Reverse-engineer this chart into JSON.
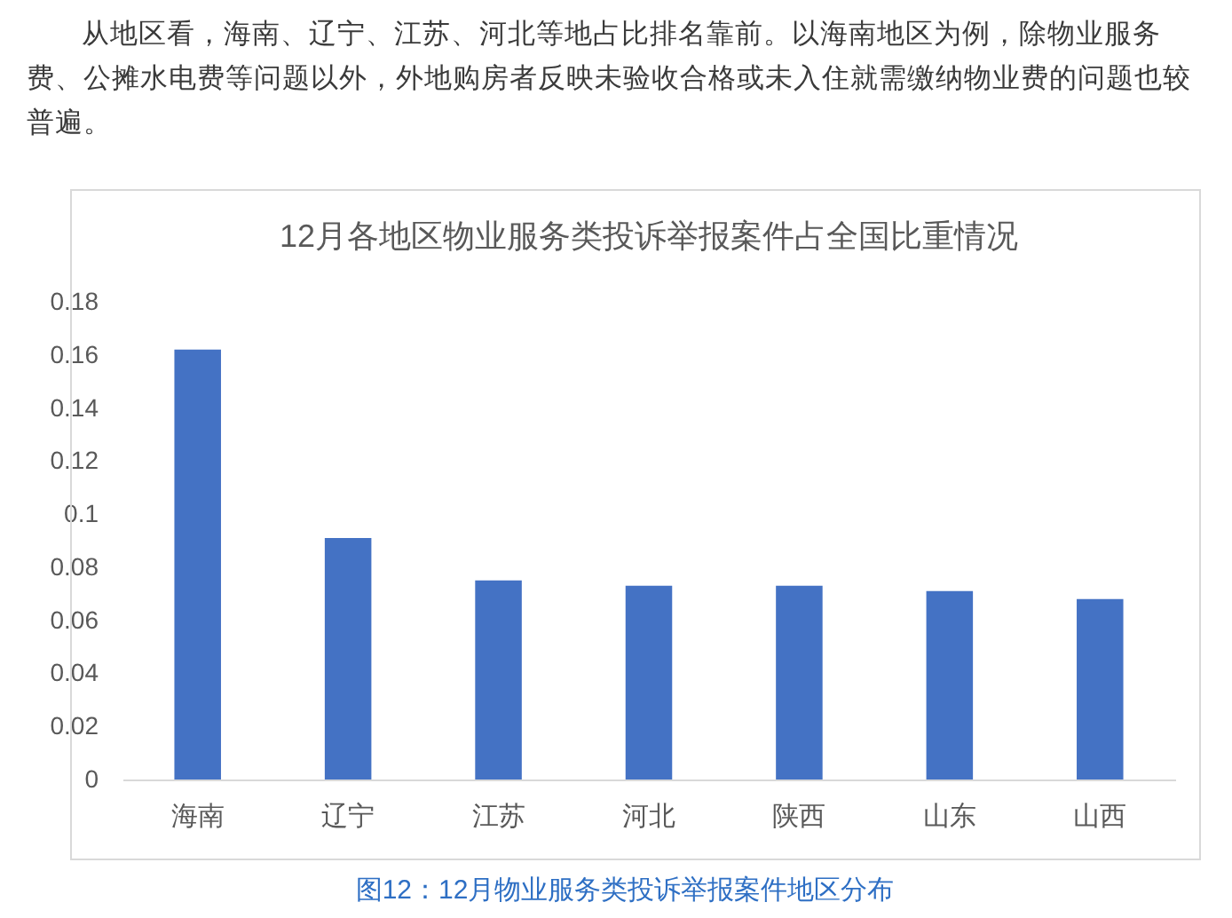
{
  "chart_data": {
    "type": "bar",
    "title": "12月各地区物业服务类投诉举报案件占全国比重情况",
    "categories": [
      "海南",
      "辽宁",
      "江苏",
      "河北",
      "陕西",
      "山东",
      "山西"
    ],
    "values": [
      0.162,
      0.091,
      0.075,
      0.073,
      0.073,
      0.071,
      0.068
    ],
    "color": "#4472c4",
    "ylim": [
      0,
      0.18
    ],
    "yticks": [
      0,
      0.02,
      0.04,
      0.06,
      0.08,
      0.1,
      0.12,
      0.14,
      0.16,
      0.18
    ],
    "grid": false,
    "annotations": [
      "从地区看，海南、辽宁、江苏、河北等地占比排名靠前。以海南地区为例，除物业服务费、公摊水电费等问题以外，外地购房者反映未验收合格或未入住就需缴纳物业费的问题也较普遍。",
      "图12：12月物业服务类投诉举报案件地区分布"
    ]
  }
}
